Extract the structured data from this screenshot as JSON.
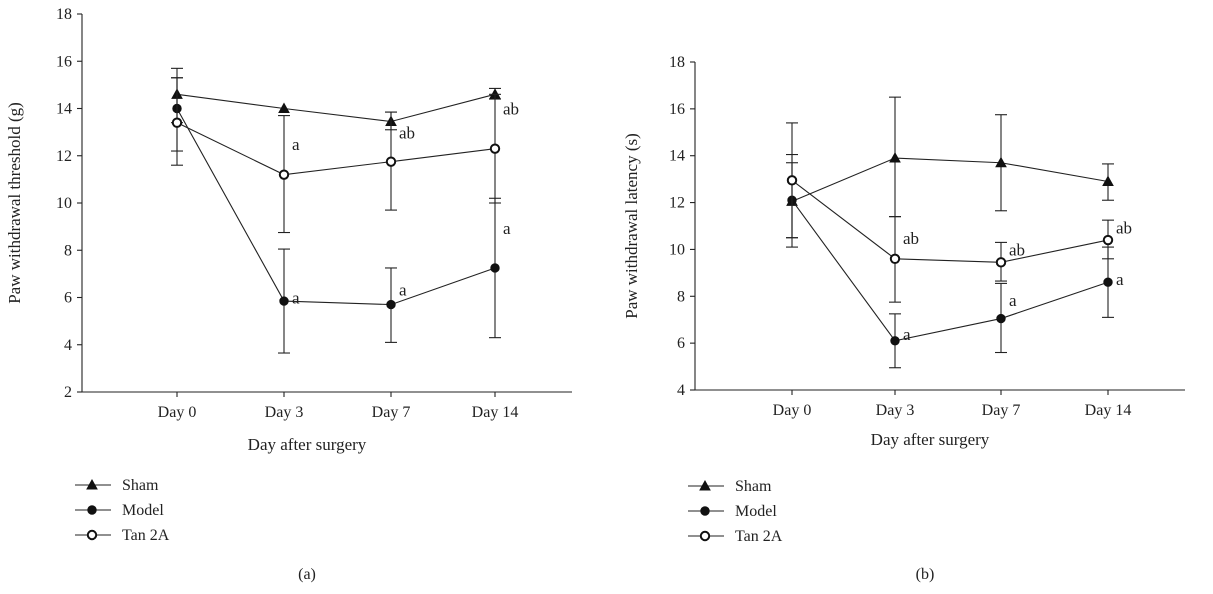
{
  "chart_data": [
    {
      "panel_label": "(a)",
      "type": "line",
      "xlabel": "Day after surgery",
      "ylabel": "Paw withdrawal threshold (g)",
      "categories": [
        "Day 0",
        "Day 3",
        "Day 7",
        "Day 14"
      ],
      "ylim": [
        2,
        18
      ],
      "yticks": [
        2,
        4,
        6,
        8,
        10,
        12,
        14,
        16,
        18
      ],
      "legend_position": "bottom-left",
      "series": [
        {
          "name": "Sham",
          "marker": "triangle",
          "values": [
            14.6,
            14.0,
            13.45,
            14.6
          ],
          "err_low": [
            13.4,
            14.0,
            13.1,
            14.4
          ],
          "err_high": [
            15.7,
            14.0,
            13.85,
            14.85
          ]
        },
        {
          "name": "Model",
          "marker": "filled-circle",
          "values": [
            14.0,
            5.85,
            5.7,
            7.25
          ],
          "err_low": [
            12.2,
            3.65,
            4.1,
            4.3
          ],
          "err_high": [
            15.3,
            8.05,
            7.25,
            10.2
          ]
        },
        {
          "name": "Tan 2A",
          "marker": "open-circle",
          "values": [
            13.4,
            11.2,
            11.75,
            12.3
          ],
          "err_low": [
            11.6,
            8.75,
            9.7,
            10.0
          ],
          "err_high": [
            15.3,
            13.7,
            13.85,
            14.6
          ]
        }
      ],
      "annotations": [
        {
          "text": "a",
          "category": "Day 3",
          "y": 12.45
        },
        {
          "text": "ab",
          "category": "Day 7",
          "y": 12.95
        },
        {
          "text": "ab",
          "category": "Day 14",
          "y": 13.95
        },
        {
          "text": "a",
          "category": "Day 3",
          "y": 5.95
        },
        {
          "text": "a",
          "category": "Day 7",
          "y": 6.3
        },
        {
          "text": "a",
          "category": "Day 14",
          "y": 8.9
        }
      ]
    },
    {
      "panel_label": "(b)",
      "type": "line",
      "xlabel": "Day after surgery",
      "ylabel": "Paw withdrawal latency (s)",
      "categories": [
        "Day 0",
        "Day 3",
        "Day 7",
        "Day 14"
      ],
      "ylim": [
        4,
        18
      ],
      "yticks": [
        4,
        6,
        8,
        10,
        12,
        14,
        16,
        18
      ],
      "legend_position": "bottom-left",
      "series": [
        {
          "name": "Sham",
          "marker": "triangle",
          "values": [
            12.05,
            13.9,
            13.7,
            12.9
          ],
          "err_low": [
            10.5,
            11.4,
            11.65,
            12.1
          ],
          "err_high": [
            14.05,
            16.5,
            15.75,
            13.65
          ]
        },
        {
          "name": "Model",
          "marker": "filled-circle",
          "values": [
            12.1,
            6.1,
            7.05,
            8.6
          ],
          "err_low": [
            10.1,
            4.95,
            5.6,
            7.1
          ],
          "err_high": [
            13.7,
            7.25,
            8.55,
            10.1
          ]
        },
        {
          "name": "Tan 2A",
          "marker": "open-circle",
          "values": [
            12.95,
            9.6,
            9.45,
            10.4
          ],
          "err_low": [
            10.5,
            7.75,
            8.65,
            9.6
          ],
          "err_high": [
            15.4,
            11.4,
            10.3,
            11.25
          ]
        }
      ],
      "annotations": [
        {
          "text": "ab",
          "category": "Day 3",
          "y": 10.45
        },
        {
          "text": "ab",
          "category": "Day 7",
          "y": 9.95
        },
        {
          "text": "ab",
          "category": "Day 14",
          "y": 10.9
        },
        {
          "text": "a",
          "category": "Day 3",
          "y": 6.35
        },
        {
          "text": "a",
          "category": "Day 7",
          "y": 7.8
        },
        {
          "text": "a",
          "category": "Day 14",
          "y": 8.7
        }
      ]
    }
  ]
}
